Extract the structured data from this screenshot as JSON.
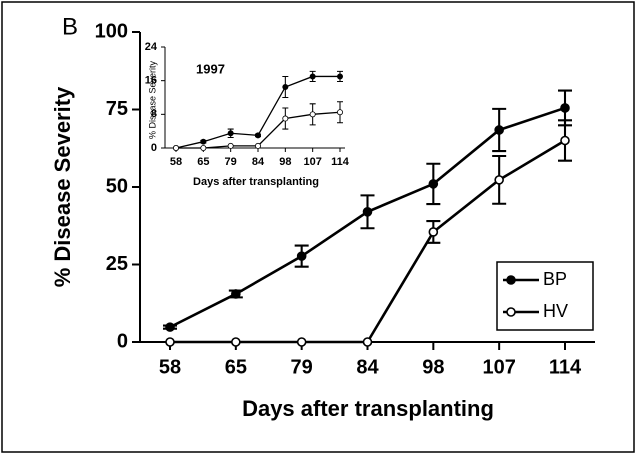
{
  "chart_data": [
    {
      "type": "line",
      "panel_label": "B",
      "xlabel": "Days after transplanting",
      "ylabel": "% Disease Severity",
      "categories": [
        "58",
        "65",
        "79",
        "84",
        "98",
        "107",
        "114"
      ],
      "ylim": [
        0,
        100
      ],
      "yticks": [
        0,
        25,
        50,
        75,
        100
      ],
      "legend": "lower right",
      "series": [
        {
          "name": "BP",
          "color": "#000000",
          "marker": "filled",
          "values": [
            4.8,
            15.5,
            27.7,
            42,
            51,
            68.4,
            75.5
          ],
          "errors": [
            0.5,
            1.1,
            3.4,
            5.3,
            6.5,
            6.8,
            5.6
          ]
        },
        {
          "name": "HV",
          "color": "#000000",
          "marker": "open",
          "values": [
            0,
            0,
            0,
            0,
            35.5,
            52.3,
            65
          ],
          "errors": [
            0,
            0,
            0,
            0,
            3.5,
            7.7,
            6.5
          ]
        }
      ]
    },
    {
      "type": "line",
      "annotation": "1997",
      "xlabel": "Days after transplanting",
      "ylabel": "% Disease Severity",
      "categories": [
        "58",
        "65",
        "79",
        "84",
        "98",
        "107",
        "114"
      ],
      "ylim": [
        0,
        24
      ],
      "yticks": [
        0,
        8,
        16,
        24
      ],
      "series": [
        {
          "color": "#000000",
          "marker": "filled",
          "values": [
            0,
            1.5,
            3.5,
            3,
            14.5,
            17,
            17
          ],
          "errors": [
            0,
            0.3,
            1,
            0.3,
            2.5,
            1.2,
            1.2
          ]
        },
        {
          "color": "#000000",
          "marker": "open",
          "values": [
            0,
            0,
            0.5,
            0.5,
            7,
            8,
            8.5
          ],
          "errors": [
            0,
            0,
            0,
            0,
            2.5,
            2.5,
            2.5
          ]
        }
      ]
    }
  ]
}
